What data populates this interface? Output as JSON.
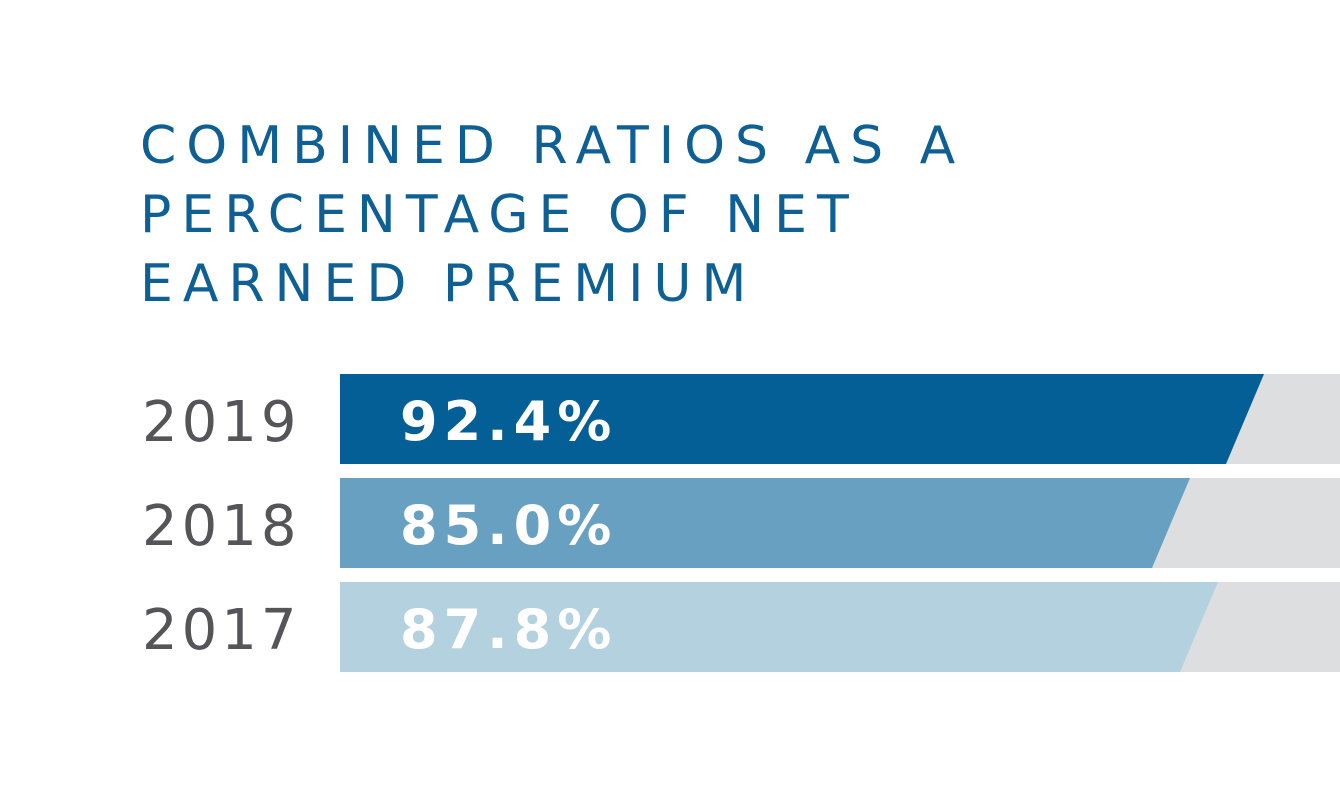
{
  "chart_data": {
    "type": "bar",
    "orientation": "horizontal",
    "title_lines": [
      "COMBINED RATIOS AS A",
      "PERCENTAGE OF NET",
      "EARNED PREMIUM"
    ],
    "categories": [
      "2019",
      "2018",
      "2017"
    ],
    "values": [
      92.4,
      85.0,
      87.8
    ],
    "value_labels": [
      "92.4%",
      "85.0%",
      "87.8%"
    ],
    "unit": "%",
    "colors": [
      "#035f96",
      "#68a0c1",
      "#b4d1e0"
    ],
    "track_color": "#dcdedf",
    "title_color": "#0e5f94",
    "category_label_color": "#555459",
    "value_label_color": "#ffffff",
    "xlabel": "",
    "ylabel": "",
    "grid": false,
    "legend": "none"
  }
}
